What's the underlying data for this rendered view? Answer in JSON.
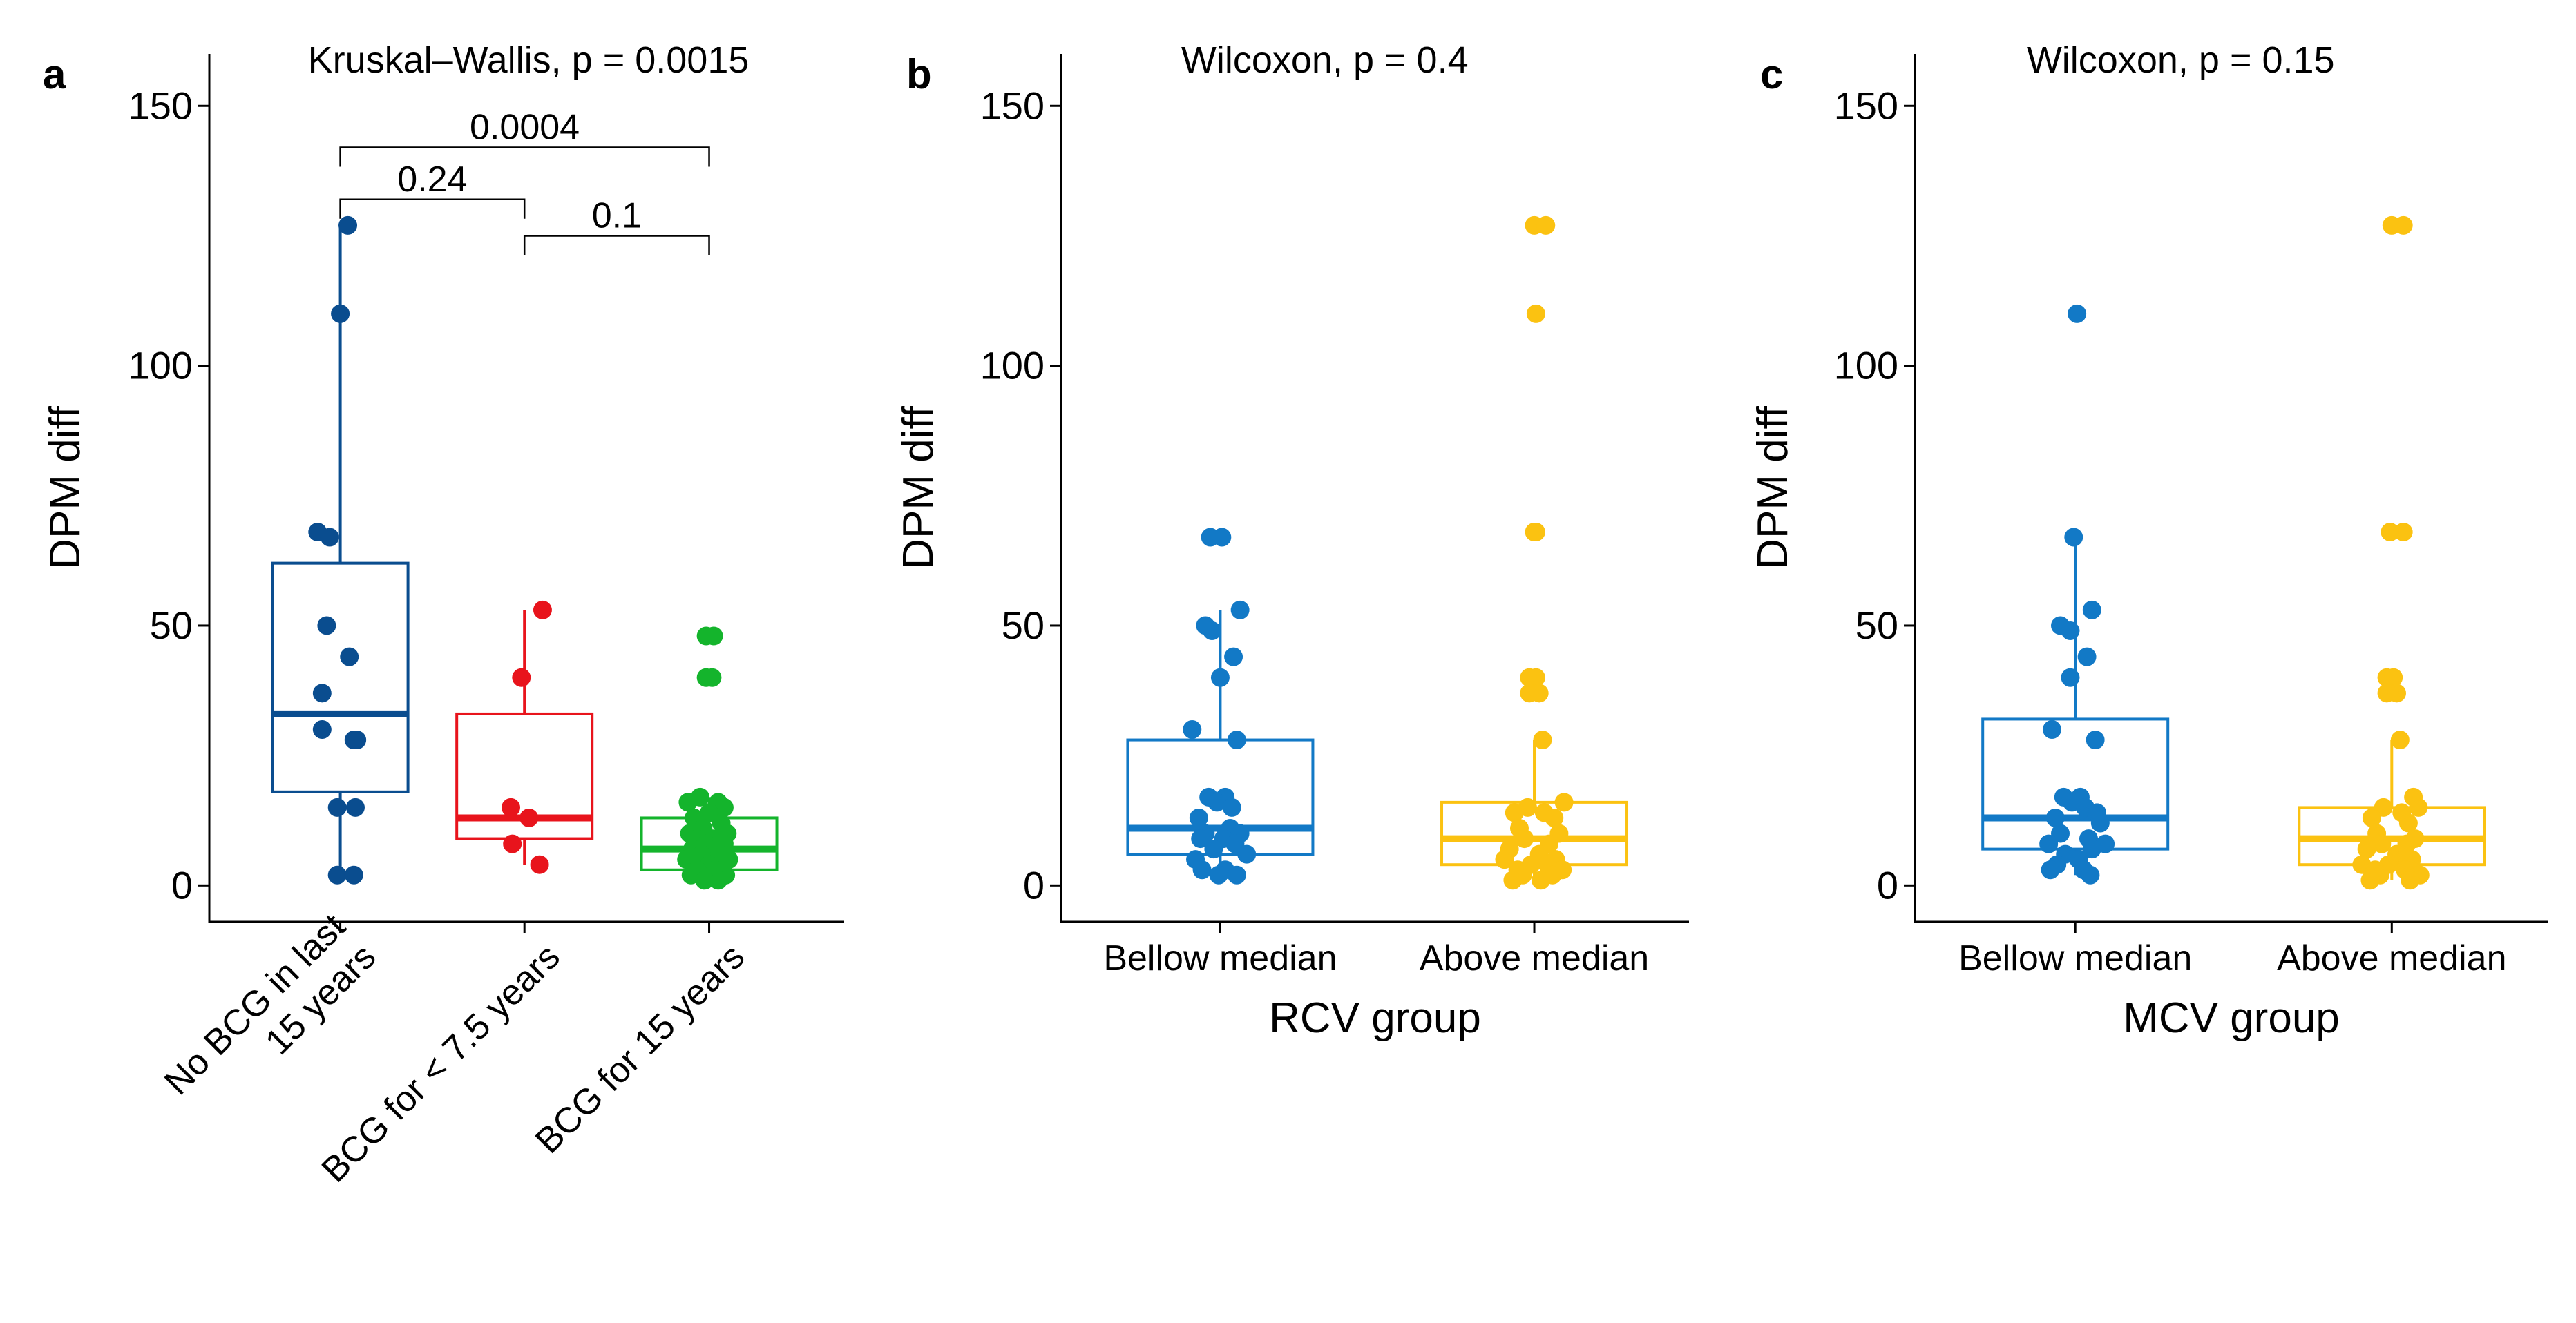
{
  "colors": {
    "dark_blue": "#0a4d8f",
    "red": "#e8141c",
    "green": "#14b42c",
    "blue": "#1279c6",
    "gold": "#fbc211",
    "axis": "#000000"
  },
  "chart_data": [
    {
      "panel": "a",
      "type": "boxplot",
      "title": "Kruskal–Wallis, p = 0.0015",
      "xlabel": "",
      "ylabel": "DPM diff",
      "ylim": [
        -7,
        160
      ],
      "yticks": [
        "0",
        "50",
        "100",
        "150"
      ],
      "categories": [
        "No BCG in last 15 years",
        "BCG for < 7.5 years",
        "BCG for 15 years"
      ],
      "category_label_lines": [
        [
          "No BCG in last",
          "15 years"
        ],
        [
          "BCG for < 7.5 years"
        ],
        [
          "BCG for 15 years"
        ]
      ],
      "series": [
        {
          "name": "No BCG in last 15 years",
          "color_key": "dark_blue",
          "box": {
            "q1": 18,
            "median": 33,
            "q3": 62,
            "whisker_low": 2,
            "whisker_high": 127
          },
          "points": [
            127,
            110,
            68,
            67,
            50,
            44,
            37,
            30,
            28,
            28,
            15,
            15,
            2,
            2
          ],
          "jitter": [
            0.05,
            0.0,
            -0.15,
            -0.07,
            -0.09,
            0.06,
            -0.12,
            -0.12,
            0.09,
            0.11,
            -0.02,
            0.1,
            -0.02,
            0.09
          ]
        },
        {
          "name": "BCG for < 7.5 years",
          "color_key": "red",
          "box": {
            "q1": 9,
            "median": 13,
            "q3": 33,
            "whisker_low": 4,
            "whisker_high": 53
          },
          "points": [
            53,
            40,
            15,
            13,
            8,
            4
          ],
          "jitter": [
            0.12,
            -0.02,
            -0.09,
            0.03,
            -0.08,
            0.1
          ]
        },
        {
          "name": "BCG for 15 years",
          "color_key": "green",
          "box": {
            "q1": 3,
            "median": 7,
            "q3": 13,
            "whisker_low": 1,
            "whisker_high": 17
          },
          "points": [
            48,
            48,
            40,
            40,
            17,
            16,
            16,
            15,
            14,
            13,
            12,
            11,
            10,
            10,
            9,
            9,
            8,
            8,
            7,
            7,
            6,
            6,
            5,
            5,
            4,
            4,
            3,
            3,
            2,
            2,
            1,
            1
          ],
          "jitter": [
            -0.02,
            0.03,
            -0.02,
            0.02,
            -0.06,
            0.06,
            -0.14,
            0.1,
            0.0,
            -0.1,
            0.08,
            -0.04,
            0.12,
            -0.13,
            0.02,
            -0.08,
            0.1,
            -0.02,
            0.05,
            -0.11,
            0.07,
            -0.05,
            0.13,
            -0.15,
            0.0,
            0.09,
            -0.08,
            0.04,
            -0.12,
            0.11,
            0.06,
            -0.03
          ]
        }
      ],
      "comparisons": [
        {
          "from": 0,
          "to": 2,
          "label": "0.0004",
          "y": 142
        },
        {
          "from": 0,
          "to": 1,
          "label": "0.24",
          "y": 132
        },
        {
          "from": 1,
          "to": 2,
          "label": "0.1",
          "y": 125
        }
      ]
    },
    {
      "panel": "b",
      "type": "boxplot",
      "title": "Wilcoxon, p = 0.4",
      "xlabel": "RCV group",
      "ylabel": "DPM diff",
      "ylim": [
        -7,
        160
      ],
      "yticks": [
        "0",
        "50",
        "100",
        "150"
      ],
      "categories": [
        "Bellow median",
        "Above median"
      ],
      "category_label_lines": [
        [
          "Bellow median"
        ],
        [
          "Above median"
        ]
      ],
      "series": [
        {
          "name": "Bellow median",
          "color_key": "blue",
          "box": {
            "q1": 6,
            "median": 11,
            "q3": 28,
            "whisker_low": 2,
            "whisker_high": 53
          },
          "points": [
            67,
            67,
            53,
            50,
            49,
            44,
            40,
            30,
            28,
            17,
            17,
            16,
            15,
            13,
            11,
            10,
            10,
            9,
            9,
            8,
            7,
            6,
            5,
            3,
            3,
            2,
            2
          ],
          "jitter": [
            -0.06,
            0.01,
            0.12,
            -0.09,
            -0.05,
            0.08,
            0.0,
            -0.17,
            0.1,
            -0.07,
            0.03,
            -0.02,
            0.07,
            -0.13,
            0.06,
            -0.09,
            0.12,
            0.02,
            -0.12,
            0.09,
            -0.04,
            0.16,
            -0.15,
            -0.11,
            0.03,
            0.1,
            -0.01
          ]
        },
        {
          "name": "Above median",
          "color_key": "gold",
          "box": {
            "q1": 4,
            "median": 9,
            "q3": 16,
            "whisker_low": 1,
            "whisker_high": 28
          },
          "points": [
            127,
            127,
            110,
            68,
            68,
            40,
            40,
            37,
            37,
            28,
            16,
            15,
            14,
            14,
            13,
            11,
            10,
            9,
            8,
            7,
            6,
            5,
            5,
            4,
            4,
            3,
            3,
            2,
            2,
            1,
            1
          ],
          "jitter": [
            0.0,
            0.07,
            0.01,
            0.0,
            0.01,
            -0.03,
            0.01,
            -0.03,
            0.03,
            0.05,
            0.18,
            -0.04,
            0.06,
            -0.12,
            0.12,
            -0.09,
            0.15,
            -0.06,
            0.09,
            -0.15,
            0.03,
            0.13,
            -0.18,
            -0.02,
            0.08,
            -0.1,
            0.17,
            -0.07,
            0.11,
            0.04,
            -0.13
          ]
        }
      ]
    },
    {
      "panel": "c",
      "type": "boxplot",
      "title": "Wilcoxon, p = 0.15",
      "xlabel": "MCV group",
      "ylabel": "DPM diff",
      "ylim": [
        -7,
        160
      ],
      "yticks": [
        "0",
        "50",
        "100",
        "150"
      ],
      "categories": [
        "Bellow median",
        "Above median"
      ],
      "category_label_lines": [
        [
          "Bellow median"
        ],
        [
          "Above median"
        ]
      ],
      "series": [
        {
          "name": "Bellow median",
          "color_key": "blue",
          "box": {
            "q1": 7,
            "median": 13,
            "q3": 32,
            "whisker_low": 2,
            "whisker_high": 67
          },
          "points": [
            110,
            67,
            53,
            50,
            49,
            44,
            40,
            30,
            28,
            17,
            17,
            16,
            15,
            14,
            13,
            12,
            10,
            9,
            8,
            8,
            7,
            6,
            5,
            4,
            3,
            3,
            2
          ],
          "jitter": [
            0.01,
            -0.01,
            0.1,
            -0.09,
            -0.03,
            0.07,
            -0.03,
            -0.14,
            0.12,
            -0.07,
            0.03,
            -0.02,
            0.06,
            0.13,
            -0.12,
            0.15,
            -0.09,
            0.08,
            -0.16,
            0.18,
            0.1,
            -0.06,
            0.02,
            -0.11,
            -0.15,
            0.05,
            0.09
          ]
        },
        {
          "name": "Above median",
          "color_key": "gold",
          "box": {
            "q1": 4,
            "median": 9,
            "q3": 15,
            "whisker_low": 1,
            "whisker_high": 28
          },
          "points": [
            127,
            127,
            68,
            68,
            40,
            40,
            37,
            37,
            28,
            17,
            15,
            15,
            14,
            13,
            12,
            10,
            9,
            8,
            8,
            7,
            6,
            5,
            4,
            4,
            3,
            3,
            2,
            2,
            1,
            1
          ],
          "jitter": [
            0.0,
            0.07,
            -0.01,
            0.07,
            -0.03,
            0.01,
            -0.03,
            0.03,
            0.05,
            0.13,
            -0.05,
            0.16,
            0.06,
            -0.12,
            0.1,
            -0.09,
            0.14,
            -0.06,
            0.09,
            -0.15,
            0.03,
            0.12,
            -0.18,
            -0.02,
            0.08,
            -0.1,
            0.17,
            -0.07,
            0.11,
            -0.13
          ]
        }
      ]
    }
  ]
}
